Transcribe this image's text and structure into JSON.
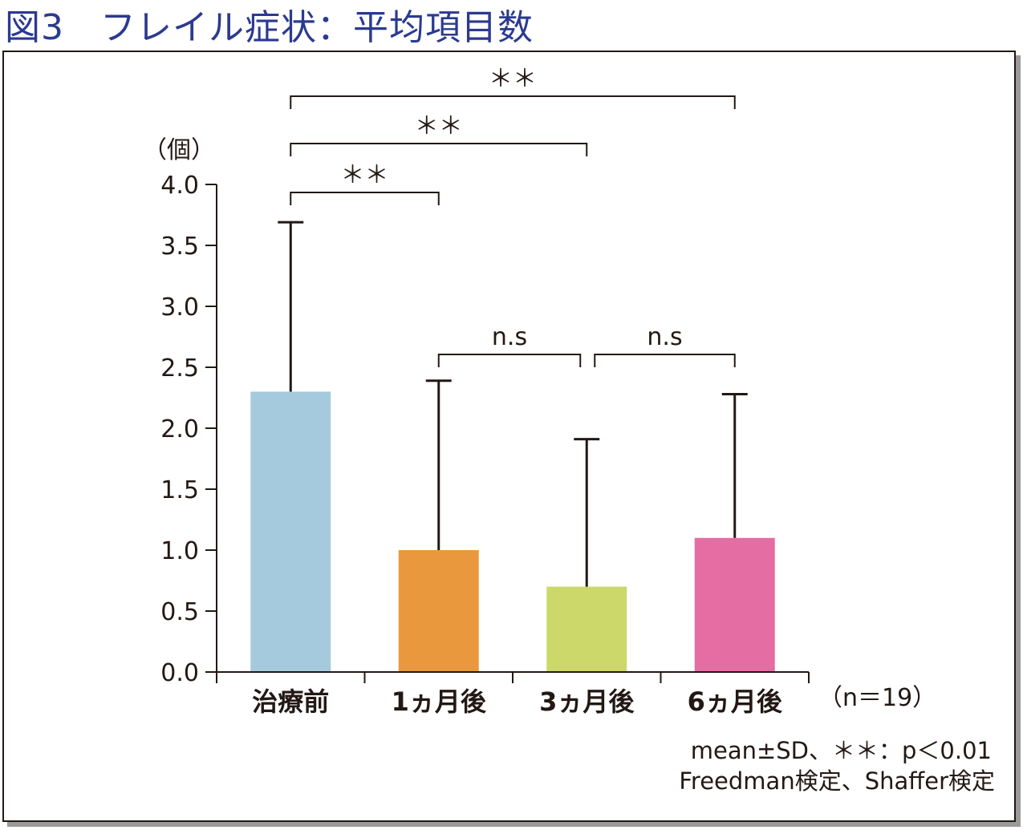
{
  "page": {
    "title": "図3　フレイル症状：平均項目数"
  },
  "chart_data": {
    "type": "bar",
    "title": "図3　フレイル症状：平均項目数",
    "ylabel": "（個）",
    "xlabel": "",
    "ylim": [
      0,
      4.0
    ],
    "yticks": [
      {
        "value": 0.0,
        "label": "0.0"
      },
      {
        "value": 0.5,
        "label": "0.5"
      },
      {
        "value": 1.0,
        "label": "1.0"
      },
      {
        "value": 1.5,
        "label": "1.5"
      },
      {
        "value": 2.0,
        "label": "2.0"
      },
      {
        "value": 2.5,
        "label": "2.5"
      },
      {
        "value": 3.0,
        "label": "3.0"
      },
      {
        "value": 3.5,
        "label": "3.5"
      },
      {
        "value": 4.0,
        "label": "4.0"
      }
    ],
    "categories": [
      "治療前",
      "1ヵ月後",
      "3ヵ月後",
      "6ヵ月後"
    ],
    "category_labels": [
      "治療前",
      "1ヵ月後",
      "3ヵ月後",
      "6ヵ月後"
    ],
    "values": [
      2.3,
      1.0,
      0.7,
      1.1
    ],
    "error_upper": [
      3.69,
      2.39,
      1.91,
      2.28
    ],
    "colors": [
      "#a5cadd",
      "#e9983e",
      "#cdd86a",
      "#e46da3"
    ],
    "sample_note": "（n＝19）",
    "significance": [
      {
        "from": 0,
        "to": 1,
        "label": "＊＊"
      },
      {
        "from": 0,
        "to": 2,
        "label": "＊＊"
      },
      {
        "from": 0,
        "to": 3,
        "label": "＊＊"
      },
      {
        "from": 1,
        "to": 2,
        "label": "n.s"
      },
      {
        "from": 2,
        "to": 3,
        "label": "n.s"
      }
    ],
    "footnotes": [
      "mean±SD、＊＊：p＜0.01",
      "Freedman検定、Shaffer検定"
    ],
    "grid": false,
    "legend": "none"
  }
}
